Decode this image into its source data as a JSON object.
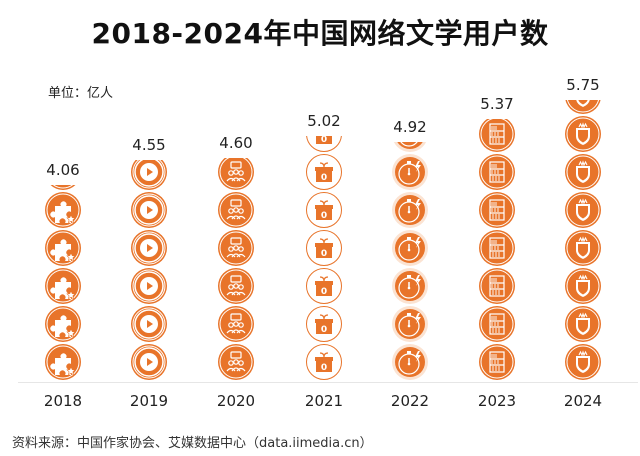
{
  "title": "2018-2024年中国网络文学用户数",
  "unit": "单位：亿人",
  "source": "资料来源：中国作家协会、艾媒数据中心（data.iimedia.cn）",
  "colors": {
    "accent": "#E8742A",
    "light": "#FBE3D2"
  },
  "chart_data": {
    "type": "bar",
    "title": "2018-2024年中国网络文学用户数",
    "xlabel": "",
    "ylabel": "单位：亿人",
    "categories": [
      "2018",
      "2019",
      "2020",
      "2021",
      "2022",
      "2023",
      "2024"
    ],
    "values": [
      4.06,
      4.55,
      4.6,
      5.02,
      4.92,
      5.37,
      5.75
    ],
    "value_labels": [
      "4.06",
      "4.55",
      "4.60",
      "5.02",
      "4.92",
      "5.37",
      "5.75"
    ],
    "icons": [
      "puzzle-icon",
      "play-icon",
      "group-chat-icon",
      "gift-icon",
      "stopwatch-icon",
      "bookshelf-icon",
      "shield-icon"
    ],
    "grid": false,
    "legend": "none"
  }
}
